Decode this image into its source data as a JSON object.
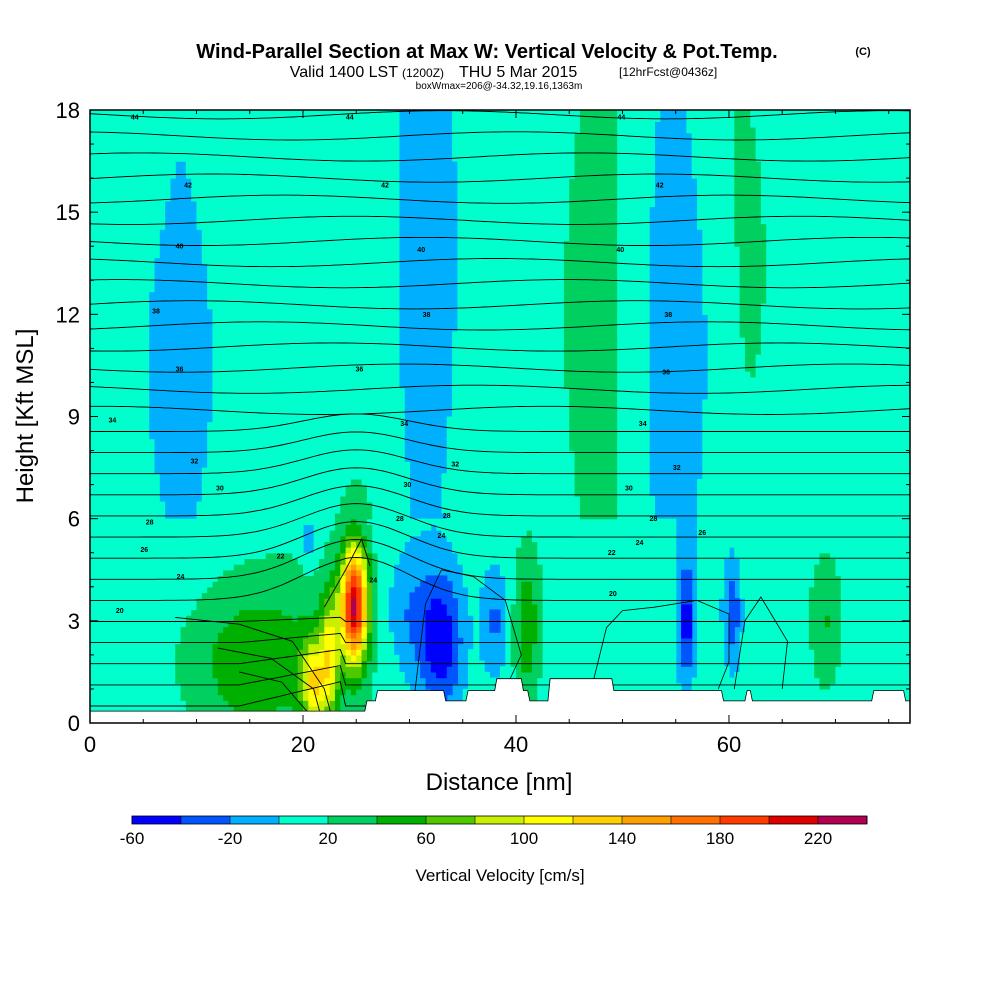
{
  "chart_data": {
    "type": "contour_cross_section",
    "title": {
      "main": "Wind-Parallel Section at Max W: Vertical Velocity & Pot.Temp.",
      "copyright": "(C)",
      "line2_a": "Valid 1400 LST",
      "line2_b": "(1200Z)",
      "line2_c": "THU 5 Mar 2015",
      "line2_d": "[12hrFcst@0436z]",
      "line3": "boxWmax=206@-34.32,19.16,1363m"
    },
    "xlabel": "Distance [nm]",
    "ylabel": "Height [Kft MSL]",
    "xlim": [
      0,
      77
    ],
    "ylim": [
      0,
      18
    ],
    "xticks": [
      0,
      20,
      40,
      60
    ],
    "yticks": [
      0,
      3,
      6,
      9,
      12,
      15,
      18
    ],
    "colorbar": {
      "label": "Vertical Velocity [cm/s]",
      "levels": [
        -60,
        -40,
        -20,
        0,
        20,
        40,
        60,
        80,
        100,
        120,
        140,
        160,
        180,
        200,
        220,
        240
      ],
      "colors": [
        "#0000ff",
        "#0055ff",
        "#00b0ff",
        "#00ffcc",
        "#00d060",
        "#00b000",
        "#50c800",
        "#c8f000",
        "#ffff00",
        "#ffd000",
        "#ffa000",
        "#ff7000",
        "#ff3c00",
        "#e00000",
        "#b00050"
      ],
      "tick_labels": [
        "-60",
        "-20",
        "20",
        "60",
        "100",
        "140",
        "180",
        "220"
      ],
      "tick_values": [
        -60,
        -20,
        20,
        60,
        100,
        140,
        180,
        220
      ]
    },
    "background_value": 10,
    "w_features": [
      {
        "x": 24.8,
        "y": 3.5,
        "sx": 0.9,
        "sy": 1.2,
        "peak": 206
      },
      {
        "x": 22.5,
        "y": 2.0,
        "sx": 0.6,
        "sy": 1.3,
        "peak": 80
      },
      {
        "x": 16.0,
        "y": 1.8,
        "sx": 5.0,
        "sy": 1.6,
        "peak": 45
      },
      {
        "x": 21.0,
        "y": 1.2,
        "sx": 0.8,
        "sy": 0.9,
        "peak": 90
      },
      {
        "x": 33.0,
        "y": 2.4,
        "sx": 1.4,
        "sy": 1.4,
        "peak": -65
      },
      {
        "x": 38.0,
        "y": 3.0,
        "sx": 1.0,
        "sy": 1.2,
        "peak": -35
      },
      {
        "x": 41.0,
        "y": 2.8,
        "sx": 0.9,
        "sy": 1.5,
        "peak": 45
      },
      {
        "x": 56.0,
        "y": 3.0,
        "sx": 0.5,
        "sy": 1.2,
        "peak": -55
      },
      {
        "x": 60.3,
        "y": 3.2,
        "sx": 0.6,
        "sy": 1.1,
        "peak": -45
      },
      {
        "x": 69.0,
        "y": 3.0,
        "sx": 1.0,
        "sy": 1.3,
        "peak": 30
      },
      {
        "x": 30.0,
        "y": 3.2,
        "sx": 1.5,
        "sy": 1.2,
        "peak": -25
      },
      {
        "x": 20.6,
        "y": 5.4,
        "sx": 0.5,
        "sy": 0.5,
        "peak": -30
      },
      {
        "x": 20.0,
        "y": 12.0,
        "sx": 2.5,
        "sy": 6.0,
        "peak": 15
      },
      {
        "x": 45.0,
        "y": 12.0,
        "sx": 3.0,
        "sy": 6.0,
        "peak": 15
      },
      {
        "x": 63.0,
        "y": 13.0,
        "sx": 2.5,
        "sy": 5.0,
        "peak": 15
      },
      {
        "x": 32.0,
        "y": 14.0,
        "sx": 3.0,
        "sy": 5.0,
        "peak": -15
      },
      {
        "x": 57.0,
        "y": 11.0,
        "sx": 3.5,
        "sy": 5.0,
        "peak": -15
      },
      {
        "x": 8.0,
        "y": 10.5,
        "sx": 4.0,
        "sy": 3.0,
        "peak": -15
      }
    ],
    "pot_temp_labels": [
      {
        "text": "44",
        "x": 4.2,
        "y": 17.8
      },
      {
        "text": "44",
        "x": 24.4,
        "y": 17.8
      },
      {
        "text": "44",
        "x": 49.9,
        "y": 17.8
      },
      {
        "text": "42",
        "x": 9.2,
        "y": 15.8
      },
      {
        "text": "42",
        "x": 27.7,
        "y": 15.8
      },
      {
        "text": "42",
        "x": 53.5,
        "y": 15.8
      },
      {
        "text": "40",
        "x": 8.4,
        "y": 14.0
      },
      {
        "text": "40",
        "x": 31.1,
        "y": 13.9
      },
      {
        "text": "40",
        "x": 49.8,
        "y": 13.9
      },
      {
        "text": "38",
        "x": 6.2,
        "y": 12.1
      },
      {
        "text": "38",
        "x": 31.6,
        "y": 12.0
      },
      {
        "text": "38",
        "x": 54.3,
        "y": 12.0
      },
      {
        "text": "36",
        "x": 8.4,
        "y": 10.4
      },
      {
        "text": "36",
        "x": 25.3,
        "y": 10.4
      },
      {
        "text": "36",
        "x": 54.1,
        "y": 10.3
      },
      {
        "text": "34",
        "x": 2.1,
        "y": 8.9
      },
      {
        "text": "34",
        "x": 29.5,
        "y": 8.8
      },
      {
        "text": "34",
        "x": 51.9,
        "y": 8.8
      },
      {
        "text": "32",
        "x": 9.8,
        "y": 7.7
      },
      {
        "text": "32",
        "x": 34.3,
        "y": 7.6
      },
      {
        "text": "32",
        "x": 55.1,
        "y": 7.5
      },
      {
        "text": "30",
        "x": 12.2,
        "y": 6.9
      },
      {
        "text": "30",
        "x": 29.8,
        "y": 7.0
      },
      {
        "text": "30",
        "x": 50.6,
        "y": 6.9
      },
      {
        "text": "28",
        "x": 5.6,
        "y": 5.9
      },
      {
        "text": "28",
        "x": 29.1,
        "y": 6.0
      },
      {
        "text": "28",
        "x": 33.5,
        "y": 6.1
      },
      {
        "text": "28",
        "x": 52.9,
        "y": 6.0
      },
      {
        "text": "26",
        "x": 5.1,
        "y": 5.1
      },
      {
        "text": "26",
        "x": 57.5,
        "y": 5.6
      },
      {
        "text": "24",
        "x": 33.0,
        "y": 5.5
      },
      {
        "text": "24",
        "x": 51.6,
        "y": 5.3
      },
      {
        "text": "24",
        "x": 8.5,
        "y": 4.3
      },
      {
        "text": "24",
        "x": 26.6,
        "y": 4.2
      },
      {
        "text": "22",
        "x": 17.9,
        "y": 4.9
      },
      {
        "text": "22",
        "x": 49.0,
        "y": 5.0
      },
      {
        "text": "20",
        "x": 2.8,
        "y": 3.3
      },
      {
        "text": "20",
        "x": 49.1,
        "y": 3.8
      }
    ],
    "terrain_x": [
      0,
      22.8,
      23.6,
      25.8,
      26.0,
      26.8,
      27.0,
      33.2,
      33.4,
      35.3,
      35.5,
      38.0,
      38.2,
      40.5,
      40.7,
      41.1,
      41.3,
      43.0,
      43.2,
      49.0,
      49.2,
      59.3,
      59.5,
      61.5,
      61.7,
      62.0,
      62.2,
      63.8,
      64.0,
      73.4,
      73.6,
      76.4,
      76.6,
      77
    ],
    "terrain_height": [
      0.35,
      0.35,
      0.35,
      0.35,
      0.65,
      0.65,
      0.95,
      0.95,
      0.65,
      0.65,
      0.95,
      0.95,
      1.3,
      1.3,
      0.95,
      0.95,
      0.65,
      0.65,
      1.3,
      1.3,
      0.95,
      0.95,
      0.65,
      0.65,
      0.95,
      0.95,
      0.65,
      0.65,
      0.65,
      0.65,
      0.95,
      0.95,
      0.65,
      0.65
    ]
  }
}
